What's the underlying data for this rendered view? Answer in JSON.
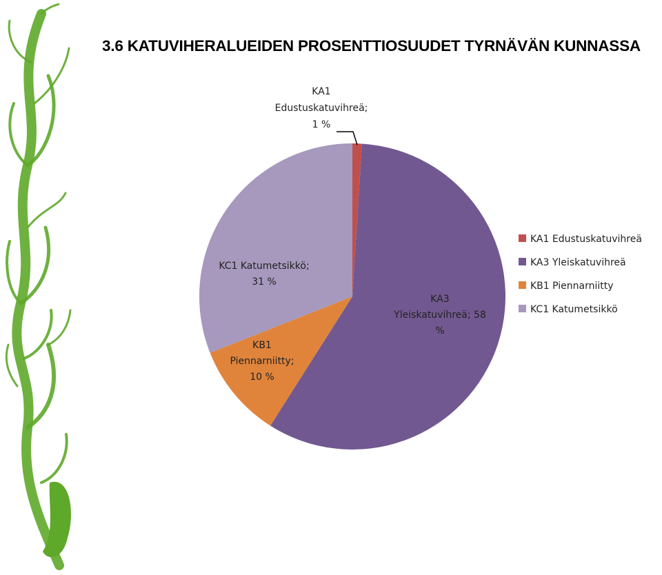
{
  "title": "3.6 KATUVIHERALUEIDEN PROSENTTIOSUUDET TYRNÄVÄN KUNNASSA",
  "chart_data": {
    "type": "pie",
    "legend_position": "right",
    "slices": [
      {
        "name": "KA1 Edustuskatuvihreä",
        "value": 1,
        "color": "#c0504d",
        "label_lines": [
          "KA1",
          "Edustuskatuvihreä;",
          "1 %"
        ]
      },
      {
        "name": "KA3 Yleiskatuvihreä",
        "value": 58,
        "color": "#725890",
        "label_lines": [
          "KA3",
          "Yleiskatuvihreä; 58",
          "%"
        ]
      },
      {
        "name": "KB1 Piennarniitty",
        "value": 10,
        "color": "#e0843c",
        "label_lines": [
          "KB1",
          "Piennarniitty;",
          "10 %"
        ]
      },
      {
        "name": "KC1 Katumetsikkö",
        "value": 31,
        "color": "#a699bd",
        "label_lines": [
          "KC1 Katumetsikkö;",
          "31 %"
        ]
      }
    ]
  },
  "decoration": {
    "vine_color": "#5ea82a"
  }
}
